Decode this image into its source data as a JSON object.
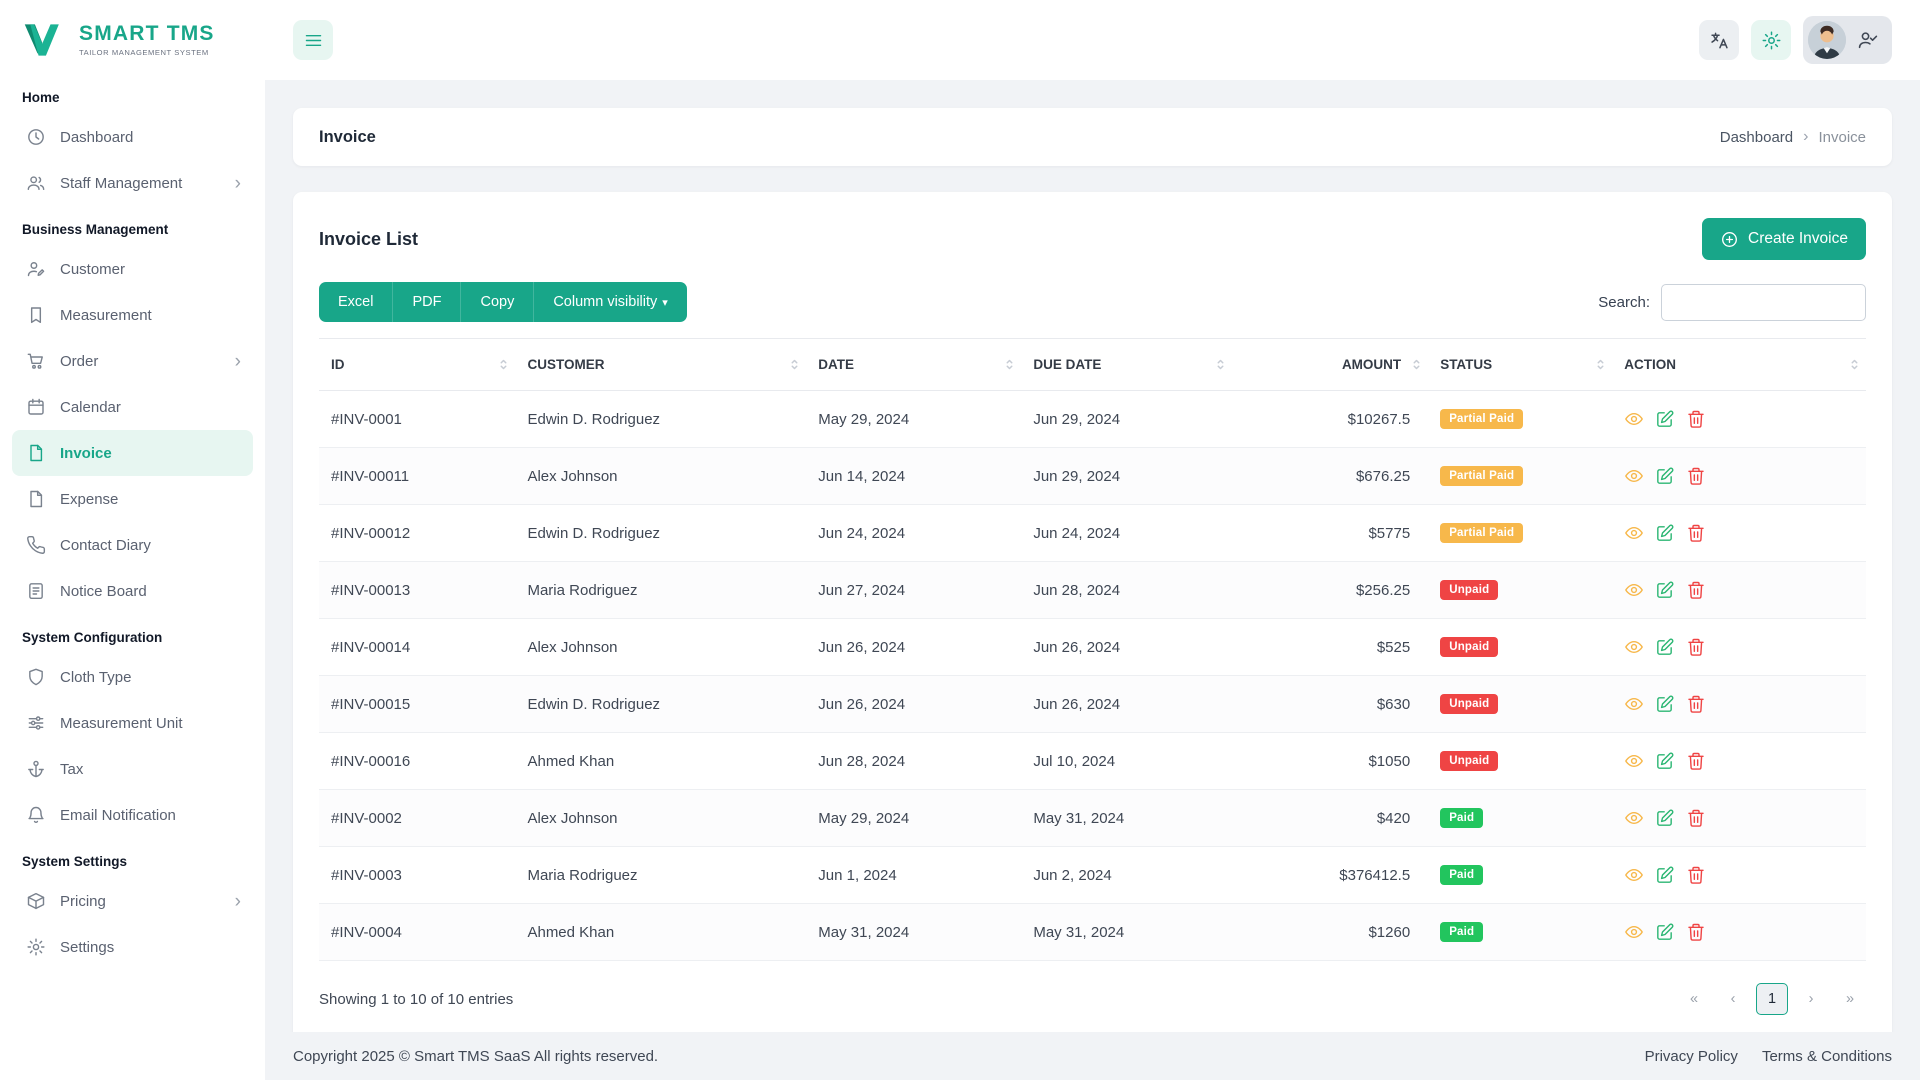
{
  "colors": {
    "accent": "#18A689",
    "accent_light": "#E7F6F1",
    "status": {
      "Partial Paid": "#F7B84B",
      "Unpaid": "#EF4444",
      "Paid": "#22C55E"
    },
    "action": {
      "view": "#F7B84B",
      "edit": "#2BB673",
      "delete": "#EF4444"
    }
  },
  "brand": {
    "name": "SMART TMS",
    "tagline": "TAILOR MANAGEMENT SYSTEM"
  },
  "sidebar": {
    "sections": [
      {
        "heading": "Home",
        "items": [
          {
            "label": "Dashboard",
            "icon": "clock"
          },
          {
            "label": "Staff Management",
            "icon": "users",
            "expandable": true
          }
        ]
      },
      {
        "heading": "Business Management",
        "items": [
          {
            "label": "Customer",
            "icon": "user-pen"
          },
          {
            "label": "Measurement",
            "icon": "bookmark"
          },
          {
            "label": "Order",
            "icon": "cart",
            "expandable": true
          },
          {
            "label": "Calendar",
            "icon": "calendar"
          },
          {
            "label": "Invoice",
            "icon": "file",
            "active": true
          },
          {
            "label": "Expense",
            "icon": "file"
          },
          {
            "label": "Contact Diary",
            "icon": "phone"
          },
          {
            "label": "Notice Board",
            "icon": "board"
          }
        ]
      },
      {
        "heading": "System Configuration",
        "items": [
          {
            "label": "Cloth Type",
            "icon": "shield"
          },
          {
            "label": "Measurement Unit",
            "icon": "equalizer"
          },
          {
            "label": "Tax",
            "icon": "anchor"
          },
          {
            "label": "Email Notification",
            "icon": "bell"
          }
        ]
      },
      {
        "heading": "System Settings",
        "items": [
          {
            "label": "Pricing",
            "icon": "box",
            "expandable": true
          },
          {
            "label": "Settings",
            "icon": "gear"
          }
        ]
      }
    ]
  },
  "breadcrumb": {
    "title": "Invoice",
    "items": [
      "Dashboard",
      "Invoice"
    ],
    "separator": "›"
  },
  "invoice_list": {
    "title": "Invoice List",
    "create_button_label": "Create Invoice",
    "export_buttons": [
      {
        "label": "Excel"
      },
      {
        "label": "PDF"
      },
      {
        "label": "Copy"
      },
      {
        "label": "Column visibility",
        "caret": true
      }
    ],
    "search_label": "Search:",
    "search_value": "",
    "table": {
      "columns": [
        {
          "label": "ID"
        },
        {
          "label": "CUSTOMER"
        },
        {
          "label": "DATE"
        },
        {
          "label": "DUE DATE"
        },
        {
          "label": "AMOUNT",
          "align": "right"
        },
        {
          "label": "STATUS"
        },
        {
          "label": "ACTION"
        }
      ],
      "rows": [
        {
          "id": "#INV-0001",
          "customer": "Edwin D. Rodriguez",
          "date": "May 29, 2024",
          "due_date": "Jun 29, 2024",
          "amount": "$10267.5",
          "status": "Partial Paid"
        },
        {
          "id": "#INV-00011",
          "customer": "Alex Johnson",
          "date": "Jun 14, 2024",
          "due_date": "Jun 29, 2024",
          "amount": "$676.25",
          "status": "Partial Paid"
        },
        {
          "id": "#INV-00012",
          "customer": "Edwin D. Rodriguez",
          "date": "Jun 24, 2024",
          "due_date": "Jun 24, 2024",
          "amount": "$5775",
          "status": "Partial Paid"
        },
        {
          "id": "#INV-00013",
          "customer": "Maria Rodriguez",
          "date": "Jun 27, 2024",
          "due_date": "Jun 28, 2024",
          "amount": "$256.25",
          "status": "Unpaid"
        },
        {
          "id": "#INV-00014",
          "customer": "Alex Johnson",
          "date": "Jun 26, 2024",
          "due_date": "Jun 26, 2024",
          "amount": "$525",
          "status": "Unpaid"
        },
        {
          "id": "#INV-00015",
          "customer": "Edwin D. Rodriguez",
          "date": "Jun 26, 2024",
          "due_date": "Jun 26, 2024",
          "amount": "$630",
          "status": "Unpaid"
        },
        {
          "id": "#INV-00016",
          "customer": "Ahmed Khan",
          "date": "Jun 28, 2024",
          "due_date": "Jul 10, 2024",
          "amount": "$1050",
          "status": "Unpaid"
        },
        {
          "id": "#INV-0002",
          "customer": "Alex Johnson",
          "date": "May 29, 2024",
          "due_date": "May 31, 2024",
          "amount": "$420",
          "status": "Paid"
        },
        {
          "id": "#INV-0003",
          "customer": "Maria Rodriguez",
          "date": "Jun 1, 2024",
          "due_date": "Jun 2, 2024",
          "amount": "$376412.5",
          "status": "Paid"
        },
        {
          "id": "#INV-0004",
          "customer": "Ahmed Khan",
          "date": "May 31, 2024",
          "due_date": "May 31, 2024",
          "amount": "$1260",
          "status": "Paid"
        }
      ]
    },
    "showing_text": "Showing 1 to 10 of 10 entries",
    "pagination": [
      {
        "label": "«",
        "name": "page-first",
        "disabled": true
      },
      {
        "label": "‹",
        "name": "page-prev",
        "disabled": true
      },
      {
        "label": "1",
        "name": "page-1",
        "active": true
      },
      {
        "label": "›",
        "name": "page-next",
        "disabled": true
      },
      {
        "label": "»",
        "name": "page-last",
        "disabled": true
      }
    ]
  },
  "page_footer": {
    "copyright": "Copyright 2025 © Smart TMS SaaS All rights reserved.",
    "links": [
      "Privacy Policy",
      "Terms & Conditions"
    ]
  }
}
